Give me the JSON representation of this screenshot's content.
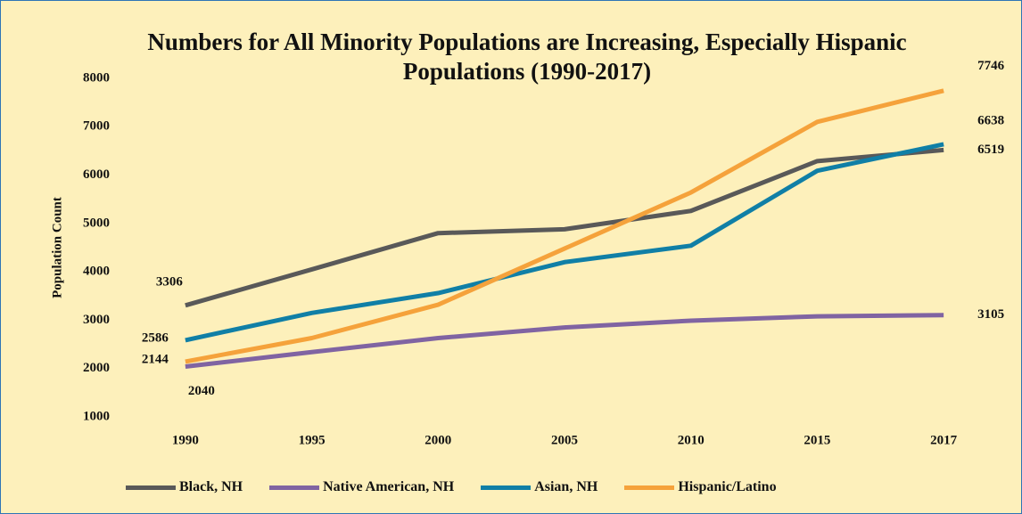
{
  "chart_data": {
    "type": "line",
    "title": "Numbers for All Minority Populations are Increasing, Especially Hispanic Populations (1990-2017)",
    "y_label": "Population Count",
    "categories": [
      "1990",
      "1995",
      "2000",
      "2005",
      "2010",
      "2015",
      "2017"
    ],
    "series": [
      {
        "name": "Black, NH",
        "color": "#595959",
        "values": [
          3306,
          4050,
          4800,
          4880,
          5260,
          6290,
          6519
        ]
      },
      {
        "name": "Native American, NH",
        "color": "#8064a2",
        "values": [
          2040,
          2340,
          2630,
          2850,
          2990,
          3080,
          3105
        ]
      },
      {
        "name": "Asian, NH",
        "color": "#107fa6",
        "values": [
          2586,
          3150,
          3560,
          4200,
          4540,
          6090,
          6638
        ]
      },
      {
        "name": "Hispanic/Latino",
        "color": "#f5a23b",
        "values": [
          2144,
          2630,
          3320,
          4480,
          5640,
          7100,
          7746
        ]
      }
    ],
    "ylim": [
      1000,
      8000
    ],
    "yticks": [
      1000,
      2000,
      3000,
      4000,
      5000,
      6000,
      7000,
      8000
    ],
    "grid": false,
    "legend": "bottom"
  }
}
